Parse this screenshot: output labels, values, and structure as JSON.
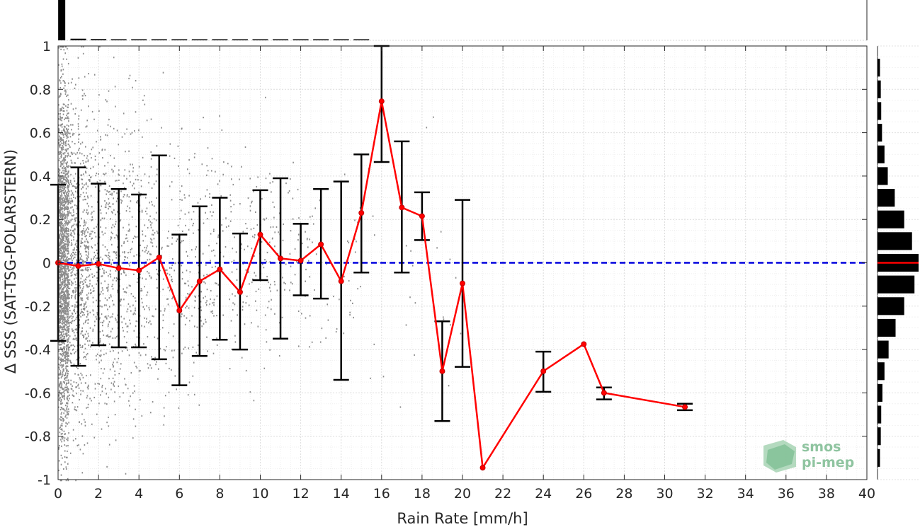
{
  "chart_data": {
    "type": "line",
    "xlabel": "Rain Rate [mm/h]",
    "ylabel": "Δ SSS (SAT-TSG-POLARSTERN)",
    "xlim": [
      0,
      40
    ],
    "ylim": [
      -1,
      1
    ],
    "x_ticks": [
      0,
      2,
      4,
      6,
      8,
      10,
      12,
      14,
      16,
      18,
      20,
      22,
      24,
      26,
      28,
      30,
      32,
      34,
      36,
      38,
      40
    ],
    "y_ticks": [
      -1,
      -0.8,
      -0.6,
      -0.4,
      -0.2,
      0,
      0.2,
      0.4,
      0.6,
      0.8,
      1
    ],
    "y_tick_labels": [
      "-1",
      "-0.8",
      "-0.6",
      "-0.4",
      "-0.2",
      "0",
      "0.2",
      "0.4",
      "0.6",
      "0.8",
      "1"
    ],
    "grid": true,
    "reference_line": {
      "y": 0,
      "style": "dashed",
      "color": "#0000dd"
    },
    "mean_series": {
      "color": "#ff0000",
      "points": [
        {
          "x": 0,
          "y": 0.0,
          "lo": -0.36,
          "hi": 0.36
        },
        {
          "x": 1,
          "y": -0.015,
          "lo": -0.475,
          "hi": 0.44
        },
        {
          "x": 2,
          "y": -0.005,
          "lo": -0.38,
          "hi": 0.365
        },
        {
          "x": 3,
          "y": -0.025,
          "lo": -0.39,
          "hi": 0.34
        },
        {
          "x": 4,
          "y": -0.035,
          "lo": -0.39,
          "hi": 0.315
        },
        {
          "x": 5,
          "y": 0.025,
          "lo": -0.445,
          "hi": 0.495
        },
        {
          "x": 6,
          "y": -0.22,
          "lo": -0.565,
          "hi": 0.13
        },
        {
          "x": 7,
          "y": -0.085,
          "lo": -0.43,
          "hi": 0.26
        },
        {
          "x": 8,
          "y": -0.03,
          "lo": -0.355,
          "hi": 0.3
        },
        {
          "x": 9,
          "y": -0.135,
          "lo": -0.4,
          "hi": 0.135
        },
        {
          "x": 10,
          "y": 0.13,
          "lo": -0.08,
          "hi": 0.335
        },
        {
          "x": 11,
          "y": 0.02,
          "lo": -0.35,
          "hi": 0.39
        },
        {
          "x": 12,
          "y": 0.01,
          "lo": -0.15,
          "hi": 0.18
        },
        {
          "x": 13,
          "y": 0.085,
          "lo": -0.165,
          "hi": 0.34
        },
        {
          "x": 14,
          "y": -0.085,
          "lo": -0.54,
          "hi": 0.375
        },
        {
          "x": 15,
          "y": 0.23,
          "lo": -0.045,
          "hi": 0.5
        },
        {
          "x": 16,
          "y": 0.745,
          "lo": 0.465,
          "hi": 1.0
        },
        {
          "x": 17,
          "y": 0.255,
          "lo": -0.045,
          "hi": 0.56
        },
        {
          "x": 18,
          "y": 0.215,
          "lo": 0.105,
          "hi": 0.325
        },
        {
          "x": 19,
          "y": -0.5,
          "lo": -0.73,
          "hi": -0.27
        },
        {
          "x": 20,
          "y": -0.095,
          "lo": -0.48,
          "hi": 0.29
        },
        {
          "x": 21,
          "y": -0.945,
          "lo": -0.945,
          "hi": -0.945
        },
        {
          "x": 24,
          "y": -0.5,
          "lo": -0.595,
          "hi": -0.41
        },
        {
          "x": 26,
          "y": -0.375,
          "lo": -0.375,
          "hi": -0.375
        },
        {
          "x": 27,
          "y": -0.6,
          "lo": -0.63,
          "hi": -0.575
        },
        {
          "x": 31,
          "y": -0.665,
          "lo": -0.68,
          "hi": -0.65
        }
      ]
    },
    "scatter_color": "#8c8c8c",
    "top_histogram": {
      "bins_x": [
        0.25,
        1,
        2,
        3,
        4,
        5,
        6,
        7,
        8,
        9,
        10,
        11,
        12,
        13,
        14,
        15
      ],
      "counts": [
        1.0,
        0.04,
        0.03,
        0.025,
        0.02,
        0.018,
        0.015,
        0.012,
        0.01,
        0.009,
        0.008,
        0.007,
        0.006,
        0.005,
        0.004,
        0.004
      ]
    },
    "right_histogram": {
      "bins_y": [
        0.9,
        0.8,
        0.7,
        0.6,
        0.5,
        0.4,
        0.3,
        0.2,
        0.1,
        0.0,
        -0.1,
        -0.2,
        -0.3,
        -0.4,
        -0.5,
        -0.6,
        -0.7,
        -0.8,
        -0.9
      ],
      "counts": [
        0.06,
        0.08,
        0.09,
        0.11,
        0.17,
        0.25,
        0.42,
        0.65,
        0.84,
        1.0,
        0.9,
        0.65,
        0.44,
        0.27,
        0.17,
        0.12,
        0.09,
        0.08,
        0.06
      ],
      "median_y": 0.0
    }
  },
  "logo": {
    "line1": "smos",
    "line2": "pi-mep"
  }
}
